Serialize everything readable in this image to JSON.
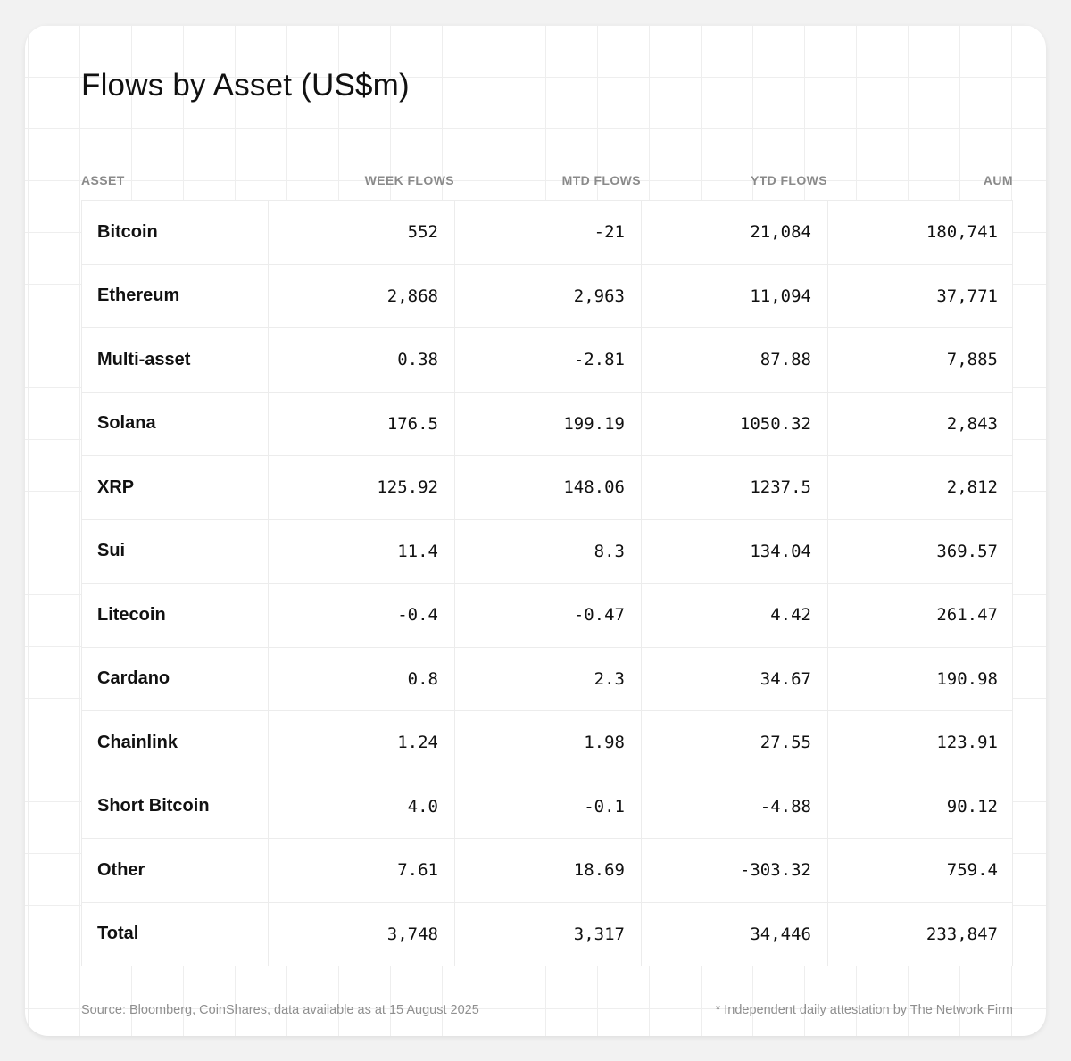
{
  "title": "Flows by Asset (US$m)",
  "columns": [
    "ASSET",
    "WEEK FLOWS",
    "MTD FLOWS",
    "YTD FLOWS",
    "AUM"
  ],
  "rows": [
    {
      "asset": "Bitcoin",
      "week": "552",
      "mtd": "-21",
      "ytd": "21,084",
      "aum": "180,741"
    },
    {
      "asset": "Ethereum",
      "week": "2,868",
      "mtd": "2,963",
      "ytd": "11,094",
      "aum": "37,771"
    },
    {
      "asset": "Multi-asset",
      "week": "0.38",
      "mtd": "-2.81",
      "ytd": "87.88",
      "aum": "7,885"
    },
    {
      "asset": "Solana",
      "week": "176.5",
      "mtd": "199.19",
      "ytd": "1050.32",
      "aum": "2,843"
    },
    {
      "asset": "XRP",
      "week": "125.92",
      "mtd": "148.06",
      "ytd": "1237.5",
      "aum": "2,812"
    },
    {
      "asset": "Sui",
      "week": "11.4",
      "mtd": "8.3",
      "ytd": "134.04",
      "aum": "369.57"
    },
    {
      "asset": "Litecoin",
      "week": "-0.4",
      "mtd": "-0.47",
      "ytd": "4.42",
      "aum": "261.47"
    },
    {
      "asset": "Cardano",
      "week": "0.8",
      "mtd": "2.3",
      "ytd": "34.67",
      "aum": "190.98"
    },
    {
      "asset": "Chainlink",
      "week": "1.24",
      "mtd": "1.98",
      "ytd": "27.55",
      "aum": "123.91"
    },
    {
      "asset": "Short Bitcoin",
      "week": "4.0",
      "mtd": "-0.1",
      "ytd": "-4.88",
      "aum": "90.12"
    },
    {
      "asset": "Other",
      "week": "7.61",
      "mtd": "18.69",
      "ytd": "-303.32",
      "aum": "759.4"
    },
    {
      "asset": "Total",
      "week": "3,748",
      "mtd": "3,317",
      "ytd": "34,446",
      "aum": "233,847"
    }
  ],
  "footer": {
    "source": "Source: Bloomberg, CoinShares, data available as at 15 August 2025",
    "note": "* Independent daily attestation by The Network Firm"
  }
}
